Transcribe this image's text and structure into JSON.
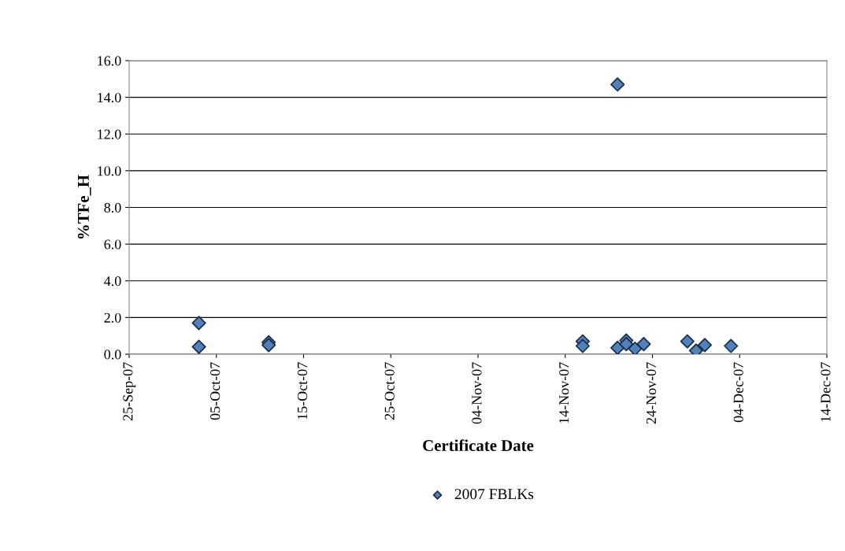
{
  "chart_data": {
    "type": "scatter",
    "xlabel": "Certificate Date",
    "ylabel": "%TFe_H",
    "x": [
      "2007-10-03",
      "2007-10-03",
      "2007-10-11",
      "2007-10-11",
      "2007-11-16",
      "2007-11-16",
      "2007-11-20",
      "2007-11-20",
      "2007-11-21",
      "2007-11-21",
      "2007-11-22",
      "2007-11-23",
      "2007-11-28",
      "2007-11-29",
      "2007-11-30",
      "2007-12-03"
    ],
    "series": [
      {
        "name": "2007 FBLKs",
        "color": "#4f81bd",
        "values": [
          1.7,
          0.4,
          0.65,
          0.5,
          0.7,
          0.45,
          14.7,
          0.35,
          0.75,
          0.55,
          0.3,
          0.55,
          0.7,
          0.2,
          0.5,
          0.45
        ]
      }
    ],
    "xlim": [
      "2007-09-25",
      "2007-12-14"
    ],
    "xticks": [
      {
        "value": "2007-09-25",
        "label": "25-Sep-07"
      },
      {
        "value": "2007-10-05",
        "label": "05-Oct-07"
      },
      {
        "value": "2007-10-15",
        "label": "15-Oct-07"
      },
      {
        "value": "2007-10-25",
        "label": "25-Oct-07"
      },
      {
        "value": "2007-11-04",
        "label": "04-Nov-07"
      },
      {
        "value": "2007-11-14",
        "label": "14-Nov-07"
      },
      {
        "value": "2007-11-24",
        "label": "24-Nov-07"
      },
      {
        "value": "2007-12-04",
        "label": "04-Dec-07"
      },
      {
        "value": "2007-12-14",
        "label": "14-Dec-07"
      }
    ],
    "ylim": [
      0,
      16
    ],
    "yticks": [
      {
        "value": 0,
        "label": "0.0"
      },
      {
        "value": 2,
        "label": "2.0"
      },
      {
        "value": 4,
        "label": "4.0"
      },
      {
        "value": 6,
        "label": "6.0"
      },
      {
        "value": 8,
        "label": "8.0"
      },
      {
        "value": 10,
        "label": "10.0"
      },
      {
        "value": 12,
        "label": "12.0"
      },
      {
        "value": 14,
        "label": "14.0"
      },
      {
        "value": 16,
        "label": "16.0"
      }
    ],
    "grid": "y",
    "legend": "bottom",
    "marker": "diamond"
  }
}
